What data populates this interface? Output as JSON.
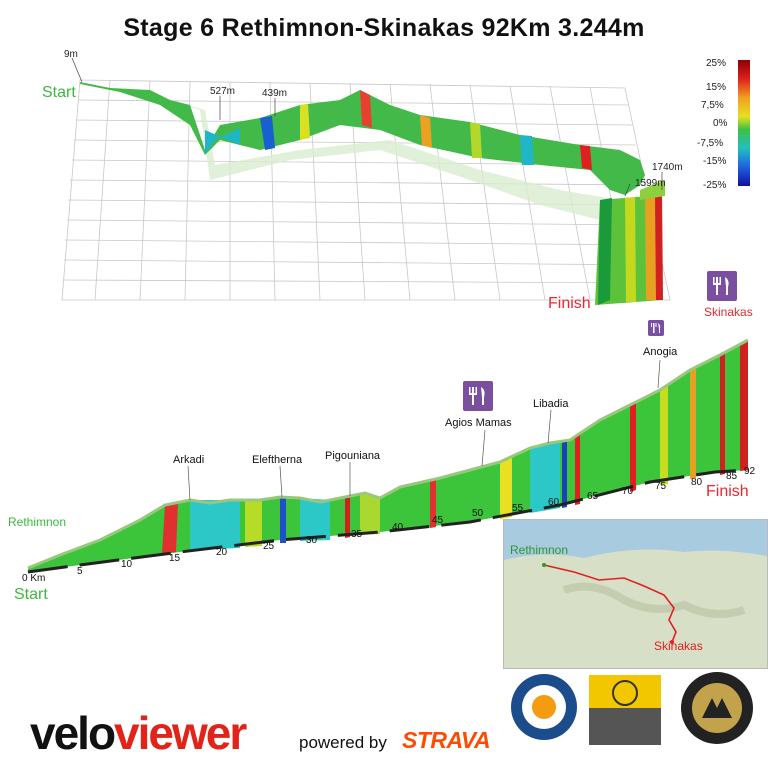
{
  "title": "Stage 6 Rethimnon-Skinakas  92Km 3.244m",
  "perspective": {
    "start_label": "Start",
    "finish_label": "Finish",
    "elev_labels": [
      "9m",
      "527m",
      "439m",
      "1599m",
      "1740m"
    ]
  },
  "legend": {
    "ticks": [
      "25%",
      "15%",
      "7,5%",
      "0%",
      "-7,5%",
      "-15%",
      "-25%"
    ]
  },
  "profile": {
    "start_label": "Start",
    "finish_label": "Finish",
    "origin_label": "Rethimnon",
    "end_label": "Skinakas",
    "places": [
      "Arkadi",
      "Eleftherna",
      "Pigouniana",
      "Agios Mamas",
      "Libadia",
      "Anogia"
    ],
    "km_ticks": [
      "0 Km",
      "5",
      "10",
      "15",
      "20",
      "25",
      "30",
      "35",
      "40",
      "45",
      "50",
      "55",
      "60",
      "65",
      "70",
      "75",
      "80",
      "85",
      "92"
    ]
  },
  "map": {
    "from": "Rethimnon",
    "to": "Skinakas"
  },
  "branding": {
    "velo_a": "velo",
    "velo_b": "viewer",
    "powered_by": "powered by",
    "strava": "STRAVA"
  },
  "chart_data": {
    "type": "area",
    "title": "Stage 6 Rethimnon-Skinakas  92Km 3.244m",
    "x": [
      0,
      5,
      10,
      15,
      20,
      25,
      30,
      35,
      40,
      45,
      50,
      55,
      60,
      65,
      70,
      75,
      80,
      85,
      92
    ],
    "series": [
      {
        "values": [
          9,
          120,
          250,
          470,
          440,
          480,
          460,
          480,
          560,
          650,
          720,
          800,
          880,
          960,
          1050,
          1250,
          1350,
          1500,
          1740
        ]
      }
    ],
    "xlabel": "",
    "ylabel": "",
    "gradient_scale": [
      "25%",
      "15%",
      "7,5%",
      "0%",
      "-7,5%",
      "-15%",
      "-25%"
    ]
  }
}
